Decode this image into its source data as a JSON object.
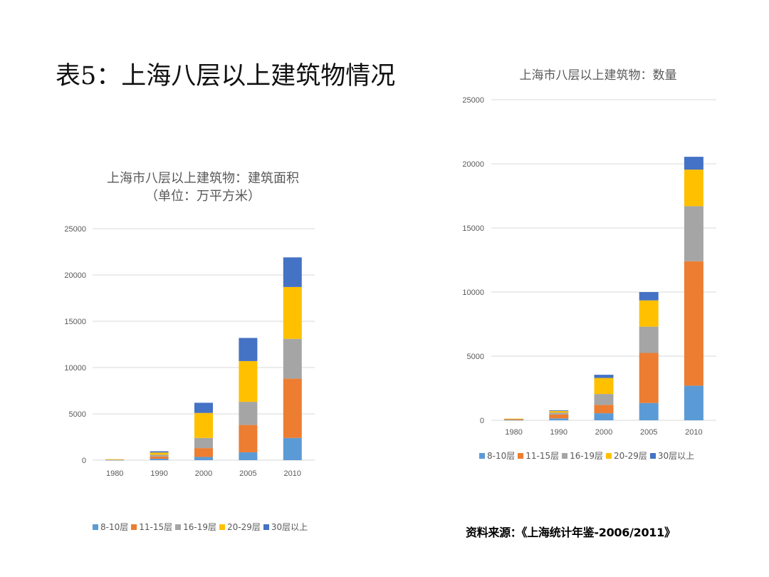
{
  "slide": {
    "title": "表5：上海八层以上建筑物情况",
    "source": "资料来源：《上海统计年鉴-2006/2011》"
  },
  "colors": {
    "8-10层": "#5B9BD5",
    "11-15层": "#ED7D31",
    "16-19层": "#A5A5A5",
    "20-29层": "#FFC000",
    "30层以上": "#4472C4",
    "grid": "#D9D9D9",
    "axis_text": "#595959"
  },
  "chart_data": [
    {
      "type": "bar",
      "stacked": true,
      "title": "上海市八层以上建筑物：建筑面积",
      "subtitle": "（单位：万平方米）",
      "categories": [
        "1980",
        "1990",
        "2000",
        "2005",
        "2010"
      ],
      "ylim": [
        0,
        25000
      ],
      "yticks": [
        0,
        5000,
        10000,
        15000,
        20000,
        25000
      ],
      "grid": true,
      "legend_position": "bottom",
      "series": [
        {
          "name": "8-10层",
          "values": [
            20,
            150,
            350,
            850,
            2400
          ]
        },
        {
          "name": "11-15层",
          "values": [
            30,
            250,
            950,
            2950,
            6400
          ]
        },
        {
          "name": "16-19层",
          "values": [
            20,
            180,
            1100,
            2500,
            4300
          ]
        },
        {
          "name": "20-29层",
          "values": [
            30,
            250,
            2700,
            4400,
            5600
          ]
        },
        {
          "name": "30层以上",
          "values": [
            0,
            130,
            1100,
            2500,
            3200
          ]
        }
      ]
    },
    {
      "type": "bar",
      "stacked": true,
      "title": "上海市八层以上建筑物：数量",
      "categories": [
        "1980",
        "1990",
        "2000",
        "2005",
        "2010"
      ],
      "ylim": [
        0,
        25000
      ],
      "yticks": [
        0,
        5000,
        10000,
        15000,
        20000,
        25000
      ],
      "grid": true,
      "legend_position": "bottom",
      "series": [
        {
          "name": "8-10层",
          "values": [
            20,
            150,
            550,
            1350,
            2700
          ]
        },
        {
          "name": "11-15层",
          "values": [
            70,
            300,
            650,
            3900,
            9700
          ]
        },
        {
          "name": "16-19层",
          "values": [
            20,
            150,
            850,
            2050,
            4300
          ]
        },
        {
          "name": "20-29层",
          "values": [
            20,
            130,
            1250,
            2050,
            2850
          ]
        },
        {
          "name": "30层以上",
          "values": [
            0,
            50,
            250,
            650,
            1000
          ]
        }
      ]
    }
  ]
}
